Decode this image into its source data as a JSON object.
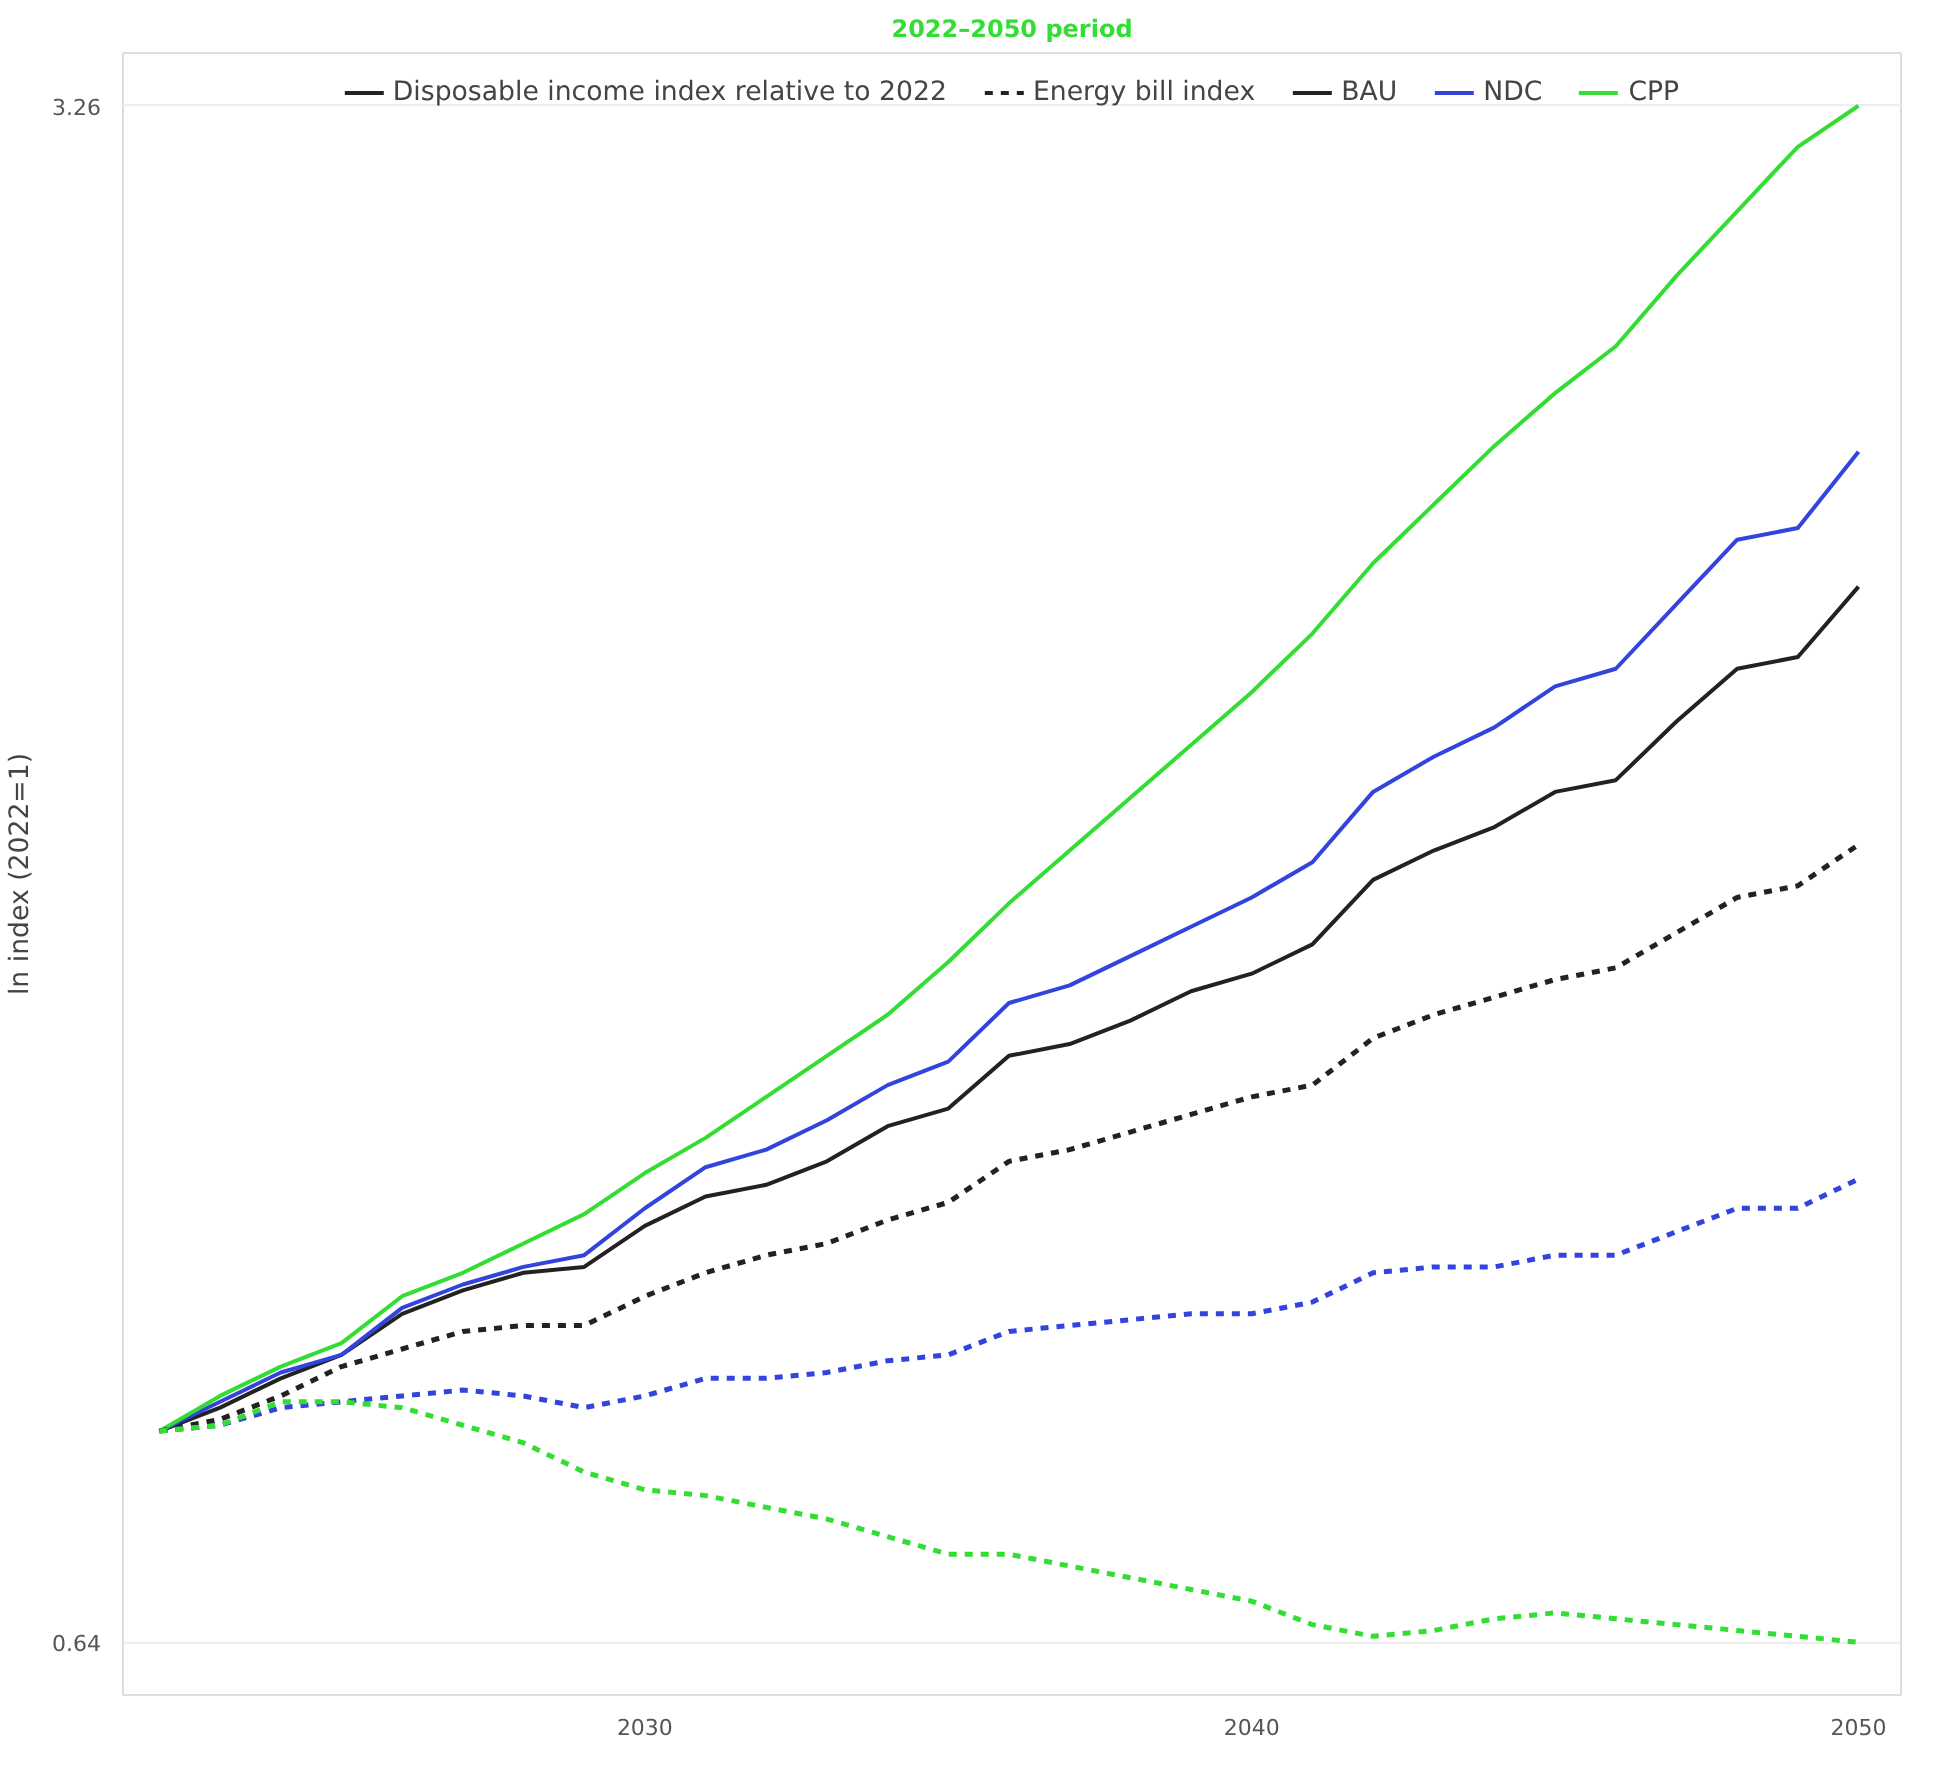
{
  "chart_data": {
    "type": "line",
    "title": "2022–2050 period",
    "ylabel": "ln index (2022=1)",
    "annotations": [
      "Disposable income index relative to 2022",
      "Energy bill index"
    ],
    "x": [
      2022,
      2023,
      2024,
      2025,
      2026,
      2027,
      2028,
      2029,
      2030,
      2031,
      2032,
      2033,
      2034,
      2035,
      2036,
      2037,
      2038,
      2039,
      2040,
      2041,
      2042,
      2043,
      2044,
      2045,
      2046,
      2047,
      2048,
      2049,
      2050
    ],
    "xlim": [
      2021.4,
      2050.7
    ],
    "xticks": [
      2030,
      2040,
      2050
    ],
    "ylim": [
      0.55,
      3.35
    ],
    "yticks": [
      0.64,
      3.26
    ],
    "grid": "y",
    "legend": "top",
    "marker": "none",
    "series": [
      {
        "name": "BAU",
        "color": "#222222",
        "line_style": "solid",
        "values": [
          1.0,
          1.04,
          1.09,
          1.13,
          1.2,
          1.24,
          1.27,
          1.28,
          1.35,
          1.4,
          1.42,
          1.46,
          1.52,
          1.55,
          1.64,
          1.66,
          1.7,
          1.75,
          1.78,
          1.83,
          1.94,
          1.99,
          2.03,
          2.09,
          2.11,
          2.21,
          2.3,
          2.32,
          2.44
        ]
      },
      {
        "name": "NDC",
        "color": "#3344dd",
        "line_style": "solid",
        "values": [
          1.0,
          1.05,
          1.1,
          1.13,
          1.21,
          1.25,
          1.28,
          1.3,
          1.38,
          1.45,
          1.48,
          1.53,
          1.59,
          1.63,
          1.73,
          1.76,
          1.81,
          1.86,
          1.91,
          1.97,
          2.09,
          2.15,
          2.2,
          2.27,
          2.3,
          2.41,
          2.52,
          2.54,
          2.67
        ]
      },
      {
        "name": "CPP",
        "color": "#33dd33",
        "line_style": "solid",
        "values": [
          1.0,
          1.06,
          1.11,
          1.15,
          1.23,
          1.27,
          1.32,
          1.37,
          1.44,
          1.5,
          1.57,
          1.64,
          1.71,
          1.8,
          1.9,
          1.99,
          2.08,
          2.17,
          2.26,
          2.36,
          2.48,
          2.58,
          2.68,
          2.77,
          2.85,
          2.97,
          3.08,
          3.19,
          3.26
        ]
      },
      {
        "color": "#222222",
        "line_style": "dashed",
        "values": [
          1.0,
          1.02,
          1.06,
          1.11,
          1.14,
          1.17,
          1.18,
          1.18,
          1.23,
          1.27,
          1.3,
          1.32,
          1.36,
          1.39,
          1.46,
          1.48,
          1.51,
          1.54,
          1.57,
          1.59,
          1.67,
          1.71,
          1.74,
          1.77,
          1.79,
          1.85,
          1.91,
          1.93,
          2.0
        ]
      },
      {
        "color": "#3344dd",
        "line_style": "dashed",
        "values": [
          1.0,
          1.01,
          1.04,
          1.05,
          1.06,
          1.07,
          1.06,
          1.04,
          1.06,
          1.09,
          1.09,
          1.1,
          1.12,
          1.13,
          1.17,
          1.18,
          1.19,
          1.2,
          1.2,
          1.22,
          1.27,
          1.28,
          1.28,
          1.3,
          1.3,
          1.34,
          1.38,
          1.38,
          1.43
        ]
      },
      {
        "color": "#33dd33",
        "line_style": "dashed",
        "values": [
          1.0,
          1.01,
          1.05,
          1.05,
          1.04,
          1.01,
          0.98,
          0.93,
          0.9,
          0.89,
          0.87,
          0.85,
          0.82,
          0.79,
          0.79,
          0.77,
          0.75,
          0.73,
          0.71,
          0.67,
          0.65,
          0.66,
          0.68,
          0.69,
          0.68,
          0.67,
          0.66,
          0.65,
          0.64
        ]
      }
    ]
  }
}
